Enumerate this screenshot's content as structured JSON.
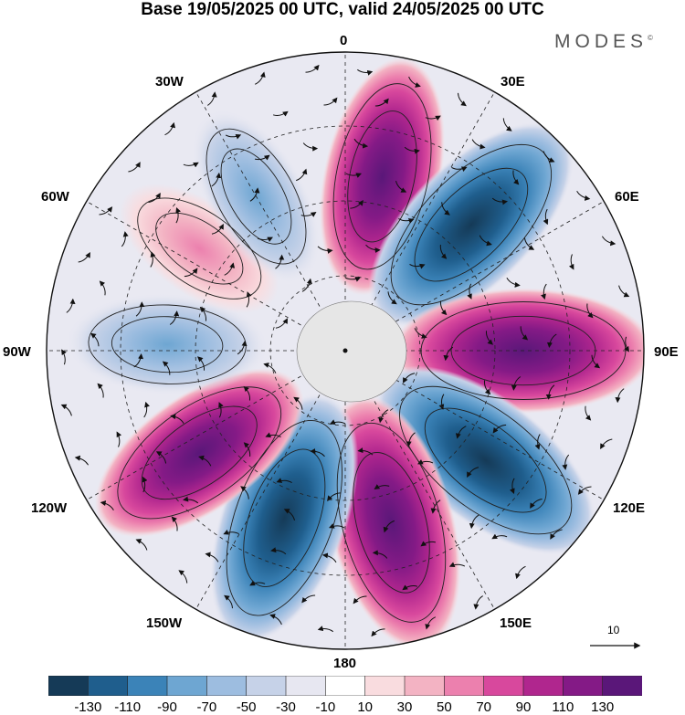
{
  "title": "Base 19/05/2025 00 UTC, valid 24/05/2025 00 UTC",
  "brand": "MODES",
  "brand_mark": "©",
  "longitude_labels": {
    "lon_0": "0",
    "lon_30e": "30E",
    "lon_60e": "60E",
    "lon_90e": "90E",
    "lon_120e": "120E",
    "lon_150e": "150E",
    "lon_180": "180",
    "lon_150w": "150W",
    "lon_120w": "120W",
    "lon_90w": "90W",
    "lon_60w": "60W",
    "lon_30w": "30W"
  },
  "reference_vector": {
    "label": "10"
  },
  "colorbar": {
    "ticks": [
      "-130",
      "-110",
      "-90",
      "-70",
      "-50",
      "-30",
      "-10",
      "10",
      "30",
      "50",
      "70",
      "90",
      "110",
      "130"
    ],
    "colors": [
      "#153a57",
      "#1f5e8d",
      "#3b83b8",
      "#6ea6d2",
      "#9dbde0",
      "#c6d2e8",
      "#e7e7f1",
      "#ffffff",
      "#f9dcdf",
      "#f3b3c3",
      "#ec80ae",
      "#d8489d",
      "#b0268e",
      "#841a86",
      "#5a1779"
    ]
  },
  "field": {
    "lobes": [
      {
        "lon": 12,
        "value": 110
      },
      {
        "lon": 45,
        "value": -130
      },
      {
        "lon": 90,
        "value": 130
      },
      {
        "lon": 128,
        "value": -130
      },
      {
        "lon": 165,
        "value": 130
      },
      {
        "lon": -160,
        "value": -130
      },
      {
        "lon": -125,
        "value": 110
      },
      {
        "lon": -88,
        "value": -70
      },
      {
        "lon": -55,
        "value": 50
      },
      {
        "lon": -30,
        "value": -60
      }
    ]
  }
}
